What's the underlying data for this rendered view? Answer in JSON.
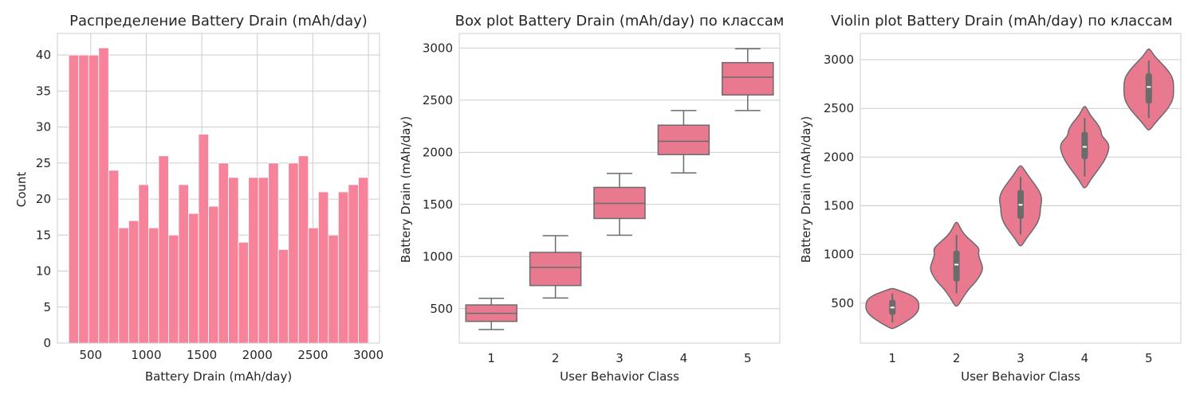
{
  "palette": {
    "hist_fill": "#f7839b",
    "box_fill": "#e8798f",
    "edge": "#6b6b6b",
    "grid": "#cccccc"
  },
  "chart_data": [
    {
      "type": "bar",
      "subtype": "histogram",
      "title": "Распределение Battery Drain (mAh/day)",
      "xlabel": "Battery Drain (mAh/day)",
      "ylabel": "Count",
      "xlim": [
        200,
        3100
      ],
      "ylim": [
        0,
        43
      ],
      "xticks": [
        "500",
        "1000",
        "1500",
        "2000",
        "2500",
        "3000"
      ],
      "yticks": [
        "0",
        "5",
        "10",
        "15",
        "20",
        "25",
        "30",
        "35",
        "40"
      ],
      "grid": true,
      "bins": {
        "start": 302,
        "end": 2999
      },
      "counts": [
        40,
        40,
        40,
        41,
        24,
        16,
        17,
        22,
        16,
        26,
        15,
        22,
        18,
        29,
        19,
        25,
        23,
        14,
        23,
        23,
        25,
        13,
        25,
        26,
        16,
        21,
        15,
        21,
        22,
        23
      ]
    },
    {
      "type": "box",
      "title": "Box plot Battery Drain (mAh/day) по классам",
      "xlabel": "User Behavior Class",
      "ylabel": "Battery Drain (mAh/day)",
      "ylim": [
        170,
        3140
      ],
      "yticks": [
        "500",
        "1000",
        "1500",
        "2000",
        "2500",
        "3000"
      ],
      "categories": [
        "1",
        "2",
        "3",
        "4",
        "5"
      ],
      "grid": true,
      "boxes": [
        {
          "whislo": 300,
          "q1": 378,
          "med": 455,
          "q3": 536,
          "whishi": 599
        },
        {
          "whislo": 602,
          "q1": 722,
          "med": 896,
          "q3": 1040,
          "whishi": 1200
        },
        {
          "whislo": 1205,
          "q1": 1365,
          "med": 1510,
          "q3": 1663,
          "whishi": 1797
        },
        {
          "whislo": 1802,
          "q1": 1978,
          "med": 2105,
          "q3": 2260,
          "whishi": 2400
        },
        {
          "whislo": 2400,
          "q1": 2550,
          "med": 2720,
          "q3": 2860,
          "whishi": 2993
        }
      ]
    },
    {
      "type": "violin",
      "title": "Violin plot Battery Drain (mAh/day) по классам",
      "xlabel": "User Behavior Class",
      "ylabel": "Battery Drain (mAh/day)",
      "ylim": [
        90,
        3270
      ],
      "yticks": [
        "500",
        "1000",
        "1500",
        "2000",
        "2500",
        "3000"
      ],
      "categories": [
        "1",
        "2",
        "3",
        "4",
        "5"
      ],
      "grid": true,
      "violins": [
        {
          "median": 455,
          "q1": 378,
          "q3": 536,
          "min": 300,
          "max": 599,
          "profile": [
            [
              240,
              0.06
            ],
            [
              300,
              0.45
            ],
            [
              370,
              0.82
            ],
            [
              430,
              0.97
            ],
            [
              480,
              0.98
            ],
            [
              530,
              0.94
            ],
            [
              580,
              0.72
            ],
            [
              620,
              0.35
            ],
            [
              650,
              0.05
            ]
          ]
        },
        {
          "median": 896,
          "q1": 722,
          "q3": 1040,
          "min": 602,
          "max": 1200,
          "profile": [
            [
              470,
              0.05
            ],
            [
              560,
              0.24
            ],
            [
              650,
              0.47
            ],
            [
              700,
              0.65
            ],
            [
              760,
              0.82
            ],
            [
              850,
              0.99
            ],
            [
              940,
              0.88
            ],
            [
              1000,
              0.8
            ],
            [
              1060,
              0.85
            ],
            [
              1120,
              0.62
            ],
            [
              1200,
              0.3
            ],
            [
              1270,
              0.14
            ],
            [
              1330,
              0.04
            ]
          ]
        },
        {
          "median": 1510,
          "q1": 1365,
          "q3": 1663,
          "min": 1205,
          "max": 1797,
          "profile": [
            [
              1090,
              0.05
            ],
            [
              1160,
              0.2
            ],
            [
              1240,
              0.42
            ],
            [
              1320,
              0.62
            ],
            [
              1400,
              0.72
            ],
            [
              1480,
              0.73
            ],
            [
              1550,
              0.78
            ],
            [
              1620,
              0.75
            ],
            [
              1700,
              0.58
            ],
            [
              1780,
              0.36
            ],
            [
              1860,
              0.16
            ],
            [
              1910,
              0.04
            ]
          ]
        },
        {
          "median": 2105,
          "q1": 1978,
          "q3": 2260,
          "min": 1802,
          "max": 2400,
          "profile": [
            [
              1685,
              0.05
            ],
            [
              1770,
              0.22
            ],
            [
              1860,
              0.47
            ],
            [
              1950,
              0.7
            ],
            [
              2030,
              0.84
            ],
            [
              2100,
              0.9
            ],
            [
              2150,
              0.86
            ],
            [
              2220,
              0.62
            ],
            [
              2280,
              0.6
            ],
            [
              2350,
              0.45
            ],
            [
              2430,
              0.2
            ],
            [
              2520,
              0.04
            ]
          ]
        },
        {
          "median": 2720,
          "q1": 2550,
          "q3": 2860,
          "min": 2400,
          "max": 2993,
          "profile": [
            [
              2280,
              0.05
            ],
            [
              2360,
              0.26
            ],
            [
              2440,
              0.53
            ],
            [
              2520,
              0.76
            ],
            [
              2600,
              0.9
            ],
            [
              2700,
              0.92
            ],
            [
              2800,
              0.9
            ],
            [
              2880,
              0.74
            ],
            [
              2960,
              0.48
            ],
            [
              3040,
              0.2
            ],
            [
              3110,
              0.04
            ]
          ]
        }
      ]
    }
  ]
}
